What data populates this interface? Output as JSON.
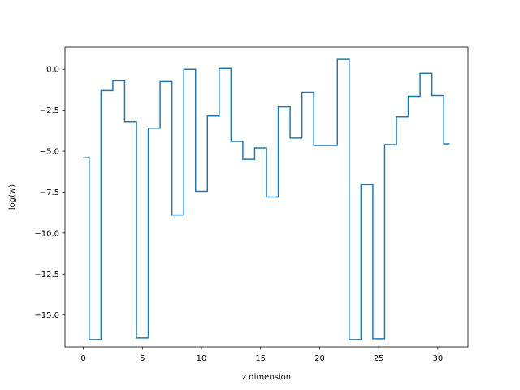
{
  "chart_data": {
    "type": "line",
    "drawstyle": "steps-mid",
    "title": "",
    "xlabel": "z dimension",
    "ylabel": "log(w)",
    "xlim": [
      -1.55,
      32.55
    ],
    "ylim": [
      -16.95,
      1.35
    ],
    "xticks": [
      0,
      5,
      10,
      15,
      20,
      25,
      30
    ],
    "xtick_labels": [
      "0",
      "5",
      "10",
      "15",
      "20",
      "25",
      "30"
    ],
    "yticks": [
      0.0,
      -2.5,
      -5.0,
      -7.5,
      -10.0,
      -12.5,
      -15.0
    ],
    "ytick_labels": [
      "0.0",
      "−2.5",
      "−5.0",
      "−7.5",
      "−10.0",
      "−12.5",
      "−15.0"
    ],
    "grid": false,
    "series": [
      {
        "color": "#1f77b4",
        "x": [
          0,
          1,
          2,
          3,
          4,
          5,
          6,
          7,
          8,
          9,
          10,
          11,
          12,
          13,
          14,
          15,
          16,
          17,
          18,
          19,
          20,
          21,
          22,
          23,
          24,
          25,
          26,
          27,
          28,
          29,
          30,
          31
        ],
        "values": [
          -5.4,
          -16.5,
          -1.3,
          -0.7,
          -3.2,
          -16.4,
          -3.6,
          -0.75,
          -8.9,
          0.0,
          -7.45,
          -2.85,
          0.05,
          -4.4,
          -5.5,
          -4.8,
          -7.8,
          -2.3,
          -4.2,
          -1.4,
          -4.65,
          -4.65,
          0.6,
          -16.5,
          -7.05,
          -16.45,
          -4.6,
          -2.9,
          -1.65,
          -0.25,
          -1.6,
          -4.55
        ]
      }
    ]
  }
}
